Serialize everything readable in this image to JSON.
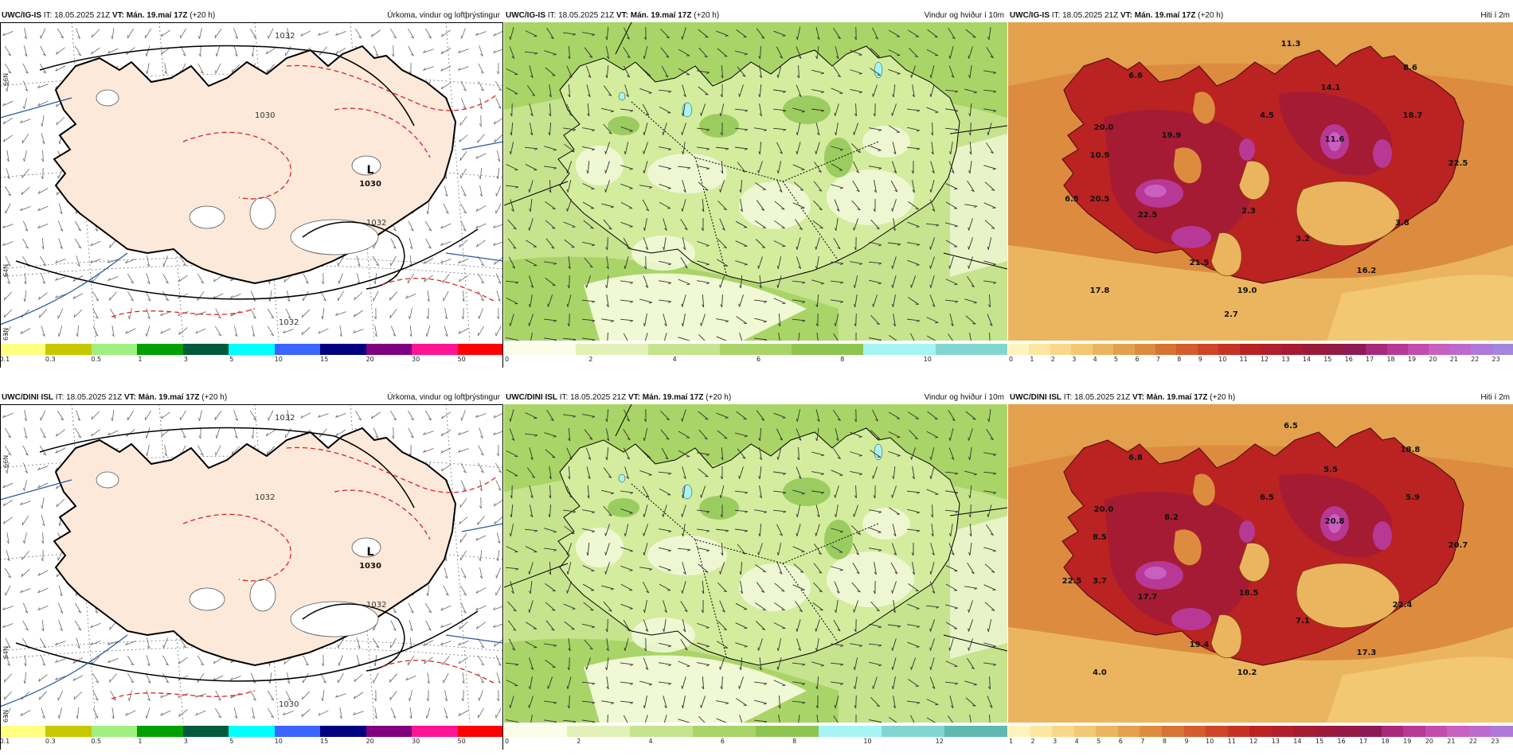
{
  "rows": [
    {
      "precip": {
        "model": "UWC/IG-IS",
        "it": "IT: 18.05.2025 21Z",
        "vt_label": "VT:",
        "vt_value": "Mán. 19.maí 17Z",
        "lead": "(+20 h)",
        "title": "Úrkoma, vindur og loftþrýstingur",
        "low_label": "L",
        "low_value": "1030",
        "isobar_labels": [
          "1032",
          "1030",
          "1032",
          "1032"
        ]
      },
      "wind": {
        "model": "UWC/IG-IS",
        "it": "IT: 18.05.2025 21Z",
        "vt_label": "VT:",
        "vt_value": "Mán. 19.maí 17Z",
        "lead": "(+20 h)",
        "title": "Vindur og hviður í 10m"
      },
      "temp": {
        "model": "UWC/IG-IS",
        "it": "IT: 18.05.2025 21Z",
        "vt_label": "VT:",
        "vt_value": "Mán. 19.maí 17Z",
        "lead": "(+20 h)",
        "title": "Hiti í 2m",
        "values": [
          "11.3",
          "6.6",
          "8.6",
          "14.1",
          "18.7",
          "20.0",
          "19.9",
          "4.5",
          "11.6",
          "10.9",
          "22.5",
          "6.5",
          "20.5",
          "22.5",
          "2.3",
          "3.8",
          "3.2",
          "21.5",
          "16.2",
          "17.8",
          "19.0",
          "2.7"
        ]
      }
    },
    {
      "precip": {
        "model": "UWC/DINI ISL",
        "it": "IT: 18.05.2025 21Z",
        "vt_label": "VT:",
        "vt_value": "Mán. 19.maí 17Z",
        "lead": "(+20 h)",
        "title": "Úrkoma, vindur og loftþrýstingur",
        "low_label": "L",
        "low_value": "1030",
        "isobar_labels": [
          "1032",
          "1032",
          "1032",
          "1030"
        ]
      },
      "wind": {
        "model": "UWC/DINI ISL",
        "it": "IT: 18.05.2025 21Z",
        "vt_label": "VT:",
        "vt_value": "Mán. 19.maí 17Z",
        "lead": "(+20 h)",
        "title": "Vindur og hviður í 10m"
      },
      "temp": {
        "model": "UWC/DINI ISL",
        "it": "IT: 18.05.2025 21Z",
        "vt_label": "VT:",
        "vt_value": "Mán. 19.maí 17Z",
        "lead": "(+20 h)",
        "title": "Hiti í 2m",
        "values": [
          "6.5",
          "6.8",
          "18.8",
          "5.5",
          "5.9",
          "20.0",
          "8.2",
          "6.5",
          "20.8",
          "8.5",
          "20.7",
          "22.5",
          "3.7",
          "17.7",
          "18.5",
          "22.4",
          "7.1",
          "19.4",
          "17.3",
          "4.0",
          "10.2"
        ]
      }
    }
  ],
  "legends": {
    "precip": {
      "ticks": [
        "0.1",
        "0.3",
        "0.5",
        "1",
        "3",
        "5",
        "10",
        "15",
        "20",
        "30",
        "50"
      ],
      "colors": [
        "#ffff80",
        "#c8c800",
        "#a0f080",
        "#00a000",
        "#005a3c",
        "#00ffff",
        "#3c64ff",
        "#000080",
        "#800080",
        "#ff1493",
        "#ff0000"
      ]
    },
    "wind_top": {
      "ticks": [
        "0",
        "2",
        "4",
        "6",
        "8",
        "10"
      ],
      "colors": [
        "#fbfde8",
        "#e2f1b8",
        "#c6e38e",
        "#a9d467",
        "#8ec550",
        "#a6f4f4",
        "#82d6d2"
      ]
    },
    "wind_bottom": {
      "ticks": [
        "0",
        "2",
        "4",
        "6",
        "8",
        "10",
        "12"
      ],
      "colors": [
        "#fbfde8",
        "#e2f1b8",
        "#c6e38e",
        "#a9d467",
        "#8ec550",
        "#a6f4f4",
        "#82d6d2",
        "#5fb8b2"
      ]
    },
    "temp_top": {
      "ticks": [
        "0",
        "1",
        "2",
        "3",
        "4",
        "5",
        "6",
        "7",
        "8",
        "9",
        "10",
        "11",
        "12",
        "13",
        "14",
        "15",
        "16",
        "17",
        "18",
        "19",
        "20",
        "21",
        "22",
        "23"
      ]
    },
    "temp_bottom": {
      "ticks": [
        "1",
        "2",
        "3",
        "4",
        "5",
        "6",
        "7",
        "8",
        "9",
        "10",
        "11",
        "12",
        "13",
        "14",
        "15",
        "16",
        "17",
        "18",
        "19",
        "20",
        "21",
        "22",
        "23"
      ]
    },
    "temp_colors": [
      "#fff3bd",
      "#fde7a0",
      "#f9d88a",
      "#f3c873",
      "#ebb55f",
      "#e3a14e",
      "#dd8c3f",
      "#d77335",
      "#d45c2d",
      "#cf4528",
      "#c63224",
      "#bb2222",
      "#b01f2b",
      "#a51b33",
      "#9b1a3a",
      "#931a44",
      "#8e1a55",
      "#a8287a",
      "#b83895",
      "#c44cad",
      "#c95fc0",
      "#bd6ad0",
      "#b078d8",
      "#a486dc"
    ]
  },
  "grid_labels": {
    "lat_66": "66N",
    "lat_64": "64N",
    "lat_63": "63N"
  }
}
